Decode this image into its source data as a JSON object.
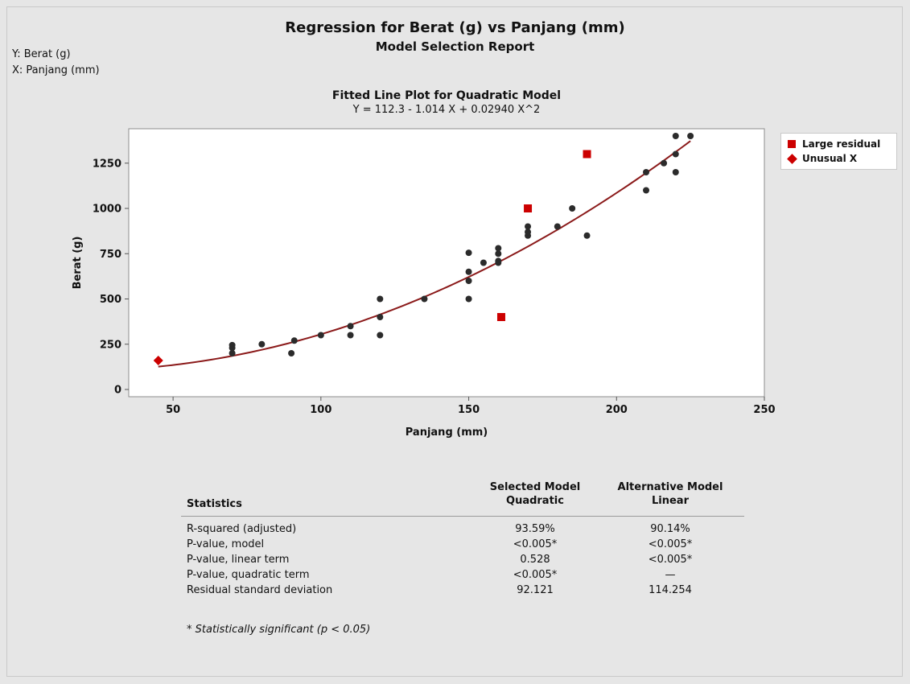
{
  "report": {
    "title": "Regression for Berat (g) vs Panjang (mm)",
    "subtitle": "Model Selection Report",
    "y_info": "Y: Berat (g)",
    "x_info": "X: Panjang (mm)"
  },
  "chart_data": {
    "type": "scatter",
    "title": "Fitted Line Plot for Quadratic Model",
    "subtitle": "Y = 112.3 - 1.014 X + 0.02940 X^2",
    "xlabel": "Panjang (mm)",
    "ylabel": "Berat (g)",
    "xlim": [
      35,
      250
    ],
    "ylim": [
      -40,
      1440
    ],
    "x_ticks": [
      50,
      100,
      150,
      200,
      250
    ],
    "y_ticks": [
      0,
      250,
      500,
      750,
      1000,
      1250
    ],
    "grid": false,
    "legend_position": "right",
    "fit": {
      "intercept": 112.3,
      "linear": -1.014,
      "quadratic": 0.0294,
      "x_range": [
        45,
        225
      ],
      "color": "#8b1a1a"
    },
    "series": [
      {
        "marker": "circle",
        "color": "#2b2b2b",
        "points": [
          [
            70,
            200
          ],
          [
            70,
            230
          ],
          [
            70,
            245
          ],
          [
            80,
            250
          ],
          [
            90,
            200
          ],
          [
            91,
            270
          ],
          [
            100,
            300
          ],
          [
            110,
            300
          ],
          [
            110,
            350
          ],
          [
            120,
            300
          ],
          [
            120,
            400
          ],
          [
            120,
            500
          ],
          [
            135,
            500
          ],
          [
            150,
            500
          ],
          [
            150,
            600
          ],
          [
            150,
            650
          ],
          [
            150,
            755
          ],
          [
            155,
            700
          ],
          [
            160,
            700
          ],
          [
            160,
            710
          ],
          [
            160,
            750
          ],
          [
            160,
            780
          ],
          [
            170,
            850
          ],
          [
            170,
            870
          ],
          [
            170,
            900
          ],
          [
            180,
            900
          ],
          [
            185,
            1000
          ],
          [
            190,
            850
          ],
          [
            210,
            1100
          ],
          [
            210,
            1200
          ],
          [
            216,
            1250
          ],
          [
            220,
            1200
          ],
          [
            220,
            1300
          ],
          [
            220,
            1400
          ],
          [
            225,
            1400
          ]
        ]
      },
      {
        "name": "Large residual",
        "marker": "square",
        "color": "#cc0000",
        "points": [
          [
            170,
            1000
          ],
          [
            190,
            1300
          ],
          [
            161,
            400
          ]
        ]
      },
      {
        "name": "Unusual X",
        "marker": "diamond",
        "color": "#cc0000",
        "points": [
          [
            45,
            160
          ]
        ]
      }
    ]
  },
  "legend": {
    "large_residual": "Large residual",
    "unusual_x": "Unusual X"
  },
  "stats": {
    "header": {
      "statistics": "Statistics",
      "selected_line1": "Selected Model",
      "selected_line2": "Quadratic",
      "alternative_line1": "Alternative Model",
      "alternative_line2": "Linear"
    },
    "rows": [
      {
        "label": "R-squared (adjusted)",
        "selected": "93.59%",
        "alternative": "90.14%"
      },
      {
        "label": "P-value, model",
        "selected": "<0.005*",
        "alternative": "<0.005*"
      },
      {
        "label": "P-value, linear term",
        "selected": "0.528",
        "alternative": "<0.005*"
      },
      {
        "label": "P-value, quadratic term",
        "selected": "<0.005*",
        "alternative": "—"
      },
      {
        "label": "Residual standard deviation",
        "selected": "92.121",
        "alternative": "114.254"
      }
    ],
    "footnote": "* Statistically significant (p < 0.05)"
  }
}
